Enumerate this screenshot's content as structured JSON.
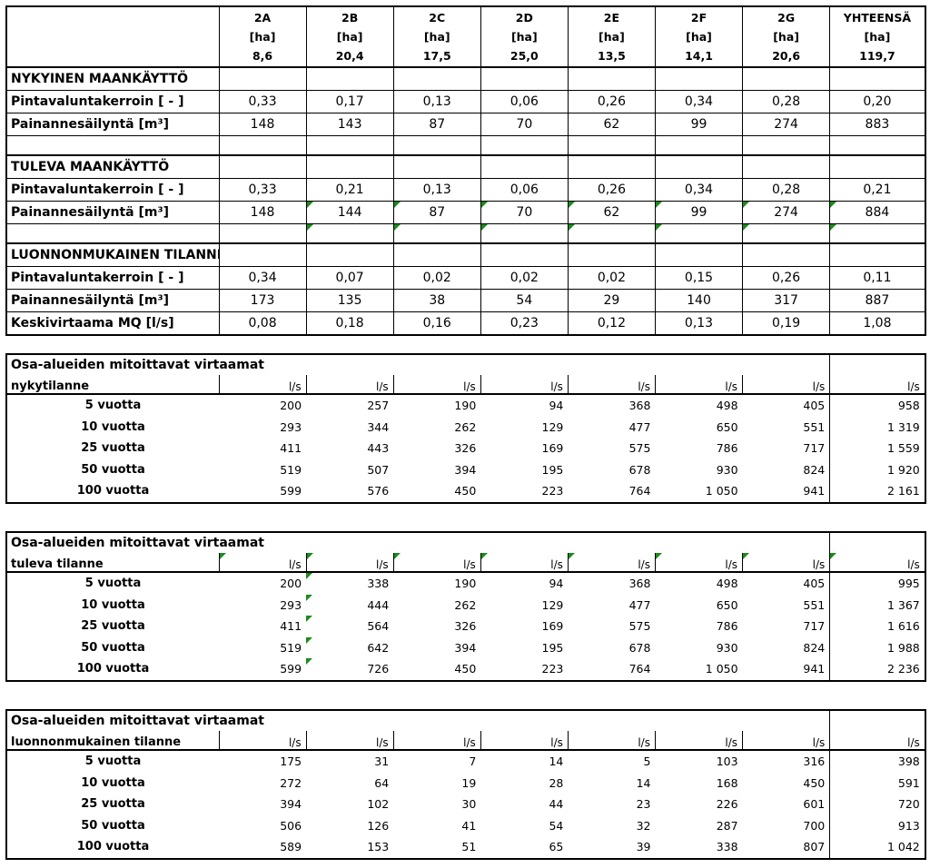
{
  "top_table": {
    "columns": [
      {
        "name": "2A",
        "unit": "[ha]",
        "area": "8,6"
      },
      {
        "name": "2B",
        "unit": "[ha]",
        "area": "20,4"
      },
      {
        "name": "2C",
        "unit": "[ha]",
        "area": "17,5"
      },
      {
        "name": "2D",
        "unit": "[ha]",
        "area": "25,0"
      },
      {
        "name": "2E",
        "unit": "[ha]",
        "area": "13,5"
      },
      {
        "name": "2F",
        "unit": "[ha]",
        "area": "14,1"
      },
      {
        "name": "2G",
        "unit": "[ha]",
        "area": "20,6"
      },
      {
        "name": "YHTEENSÄ",
        "unit": "[ha]",
        "area": "119,7"
      }
    ],
    "sections": [
      {
        "title": "NYKYINEN MAANKÄYTTÖ",
        "rows": [
          {
            "label": "Pintavaluntakerroin [ - ]",
            "values": [
              "0,33",
              "0,17",
              "0,13",
              "0,06",
              "0,26",
              "0,34",
              "0,28",
              "0,20"
            ]
          },
          {
            "label": "Painannesäilyntä [m³]",
            "values": [
              "148",
              "143",
              "87",
              "70",
              "62",
              "99",
              "274",
              "883"
            ]
          }
        ]
      },
      {
        "title": "TULEVA MAANKÄYTTÖ",
        "rows": [
          {
            "label": "Pintavaluntakerroin [ - ]",
            "values": [
              "0,33",
              "0,21",
              "0,13",
              "0,06",
              "0,26",
              "0,34",
              "0,28",
              "0,21"
            ]
          },
          {
            "label": "Painannesäilyntä [m³]",
            "values": [
              "148",
              "144",
              "87",
              "70",
              "62",
              "99",
              "274",
              "884"
            ]
          }
        ]
      },
      {
        "title": "LUONNONMUKAINEN TILANNE",
        "rows": [
          {
            "label": "Pintavaluntakerroin [ - ]",
            "values": [
              "0,34",
              "0,07",
              "0,02",
              "0,02",
              "0,02",
              "0,15",
              "0,26",
              "0,11"
            ]
          },
          {
            "label": "Painannesäilyntä [m³]",
            "values": [
              "173",
              "135",
              "38",
              "54",
              "29",
              "140",
              "317",
              "887"
            ]
          },
          {
            "label": "Keskivirtaama MQ [l/s]",
            "values": [
              "0,08",
              "0,18",
              "0,16",
              "0,23",
              "0,12",
              "0,13",
              "0,19",
              "1,08"
            ]
          }
        ]
      }
    ]
  },
  "flow_tables": [
    {
      "title": "Osa-alueiden mitoittavat virtaamat",
      "subtitle": "nykytilanne",
      "unit": "l/s",
      "rows": [
        {
          "label": "5 vuotta",
          "values": [
            "200",
            "257",
            "190",
            "94",
            "368",
            "498",
            "405",
            "958"
          ]
        },
        {
          "label": "10 vuotta",
          "values": [
            "293",
            "344",
            "262",
            "129",
            "477",
            "650",
            "551",
            "1 319"
          ]
        },
        {
          "label": "25 vuotta",
          "values": [
            "411",
            "443",
            "326",
            "169",
            "575",
            "786",
            "717",
            "1 559"
          ]
        },
        {
          "label": "50 vuotta",
          "values": [
            "519",
            "507",
            "394",
            "195",
            "678",
            "930",
            "824",
            "1 920"
          ]
        },
        {
          "label": "100 vuotta",
          "values": [
            "599",
            "576",
            "450",
            "223",
            "764",
            "1 050",
            "941",
            "2 161"
          ]
        }
      ]
    },
    {
      "title": "Osa-alueiden mitoittavat virtaamat",
      "subtitle": "tuleva tilanne",
      "unit": "l/s",
      "rows": [
        {
          "label": "5 vuotta",
          "values": [
            "200",
            "338",
            "190",
            "94",
            "368",
            "498",
            "405",
            "995"
          ]
        },
        {
          "label": "10 vuotta",
          "values": [
            "293",
            "444",
            "262",
            "129",
            "477",
            "650",
            "551",
            "1 367"
          ]
        },
        {
          "label": "25 vuotta",
          "values": [
            "411",
            "564",
            "326",
            "169",
            "575",
            "786",
            "717",
            "1 616"
          ]
        },
        {
          "label": "50 vuotta",
          "values": [
            "519",
            "642",
            "394",
            "195",
            "678",
            "930",
            "824",
            "1 988"
          ]
        },
        {
          "label": "100 vuotta",
          "values": [
            "599",
            "726",
            "450",
            "223",
            "764",
            "1 050",
            "941",
            "2 236"
          ]
        }
      ]
    },
    {
      "title": "Osa-alueiden mitoittavat virtaamat",
      "subtitle": "luonnonmukainen tilanne",
      "unit": "l/s",
      "rows": [
        {
          "label": "5 vuotta",
          "values": [
            "175",
            "31",
            "7",
            "14",
            "5",
            "103",
            "316",
            "398"
          ]
        },
        {
          "label": "10 vuotta",
          "values": [
            "272",
            "64",
            "19",
            "28",
            "14",
            "168",
            "450",
            "591"
          ]
        },
        {
          "label": "25 vuotta",
          "values": [
            "394",
            "102",
            "30",
            "44",
            "23",
            "226",
            "601",
            "720"
          ]
        },
        {
          "label": "50 vuotta",
          "values": [
            "506",
            "126",
            "41",
            "54",
            "32",
            "287",
            "700",
            "913"
          ]
        },
        {
          "label": "100 vuotta",
          "values": [
            "589",
            "153",
            "51",
            "65",
            "39",
            "338",
            "807",
            "1 042"
          ]
        }
      ]
    }
  ],
  "colors": {
    "comment_marker": "#1c8b1c"
  }
}
